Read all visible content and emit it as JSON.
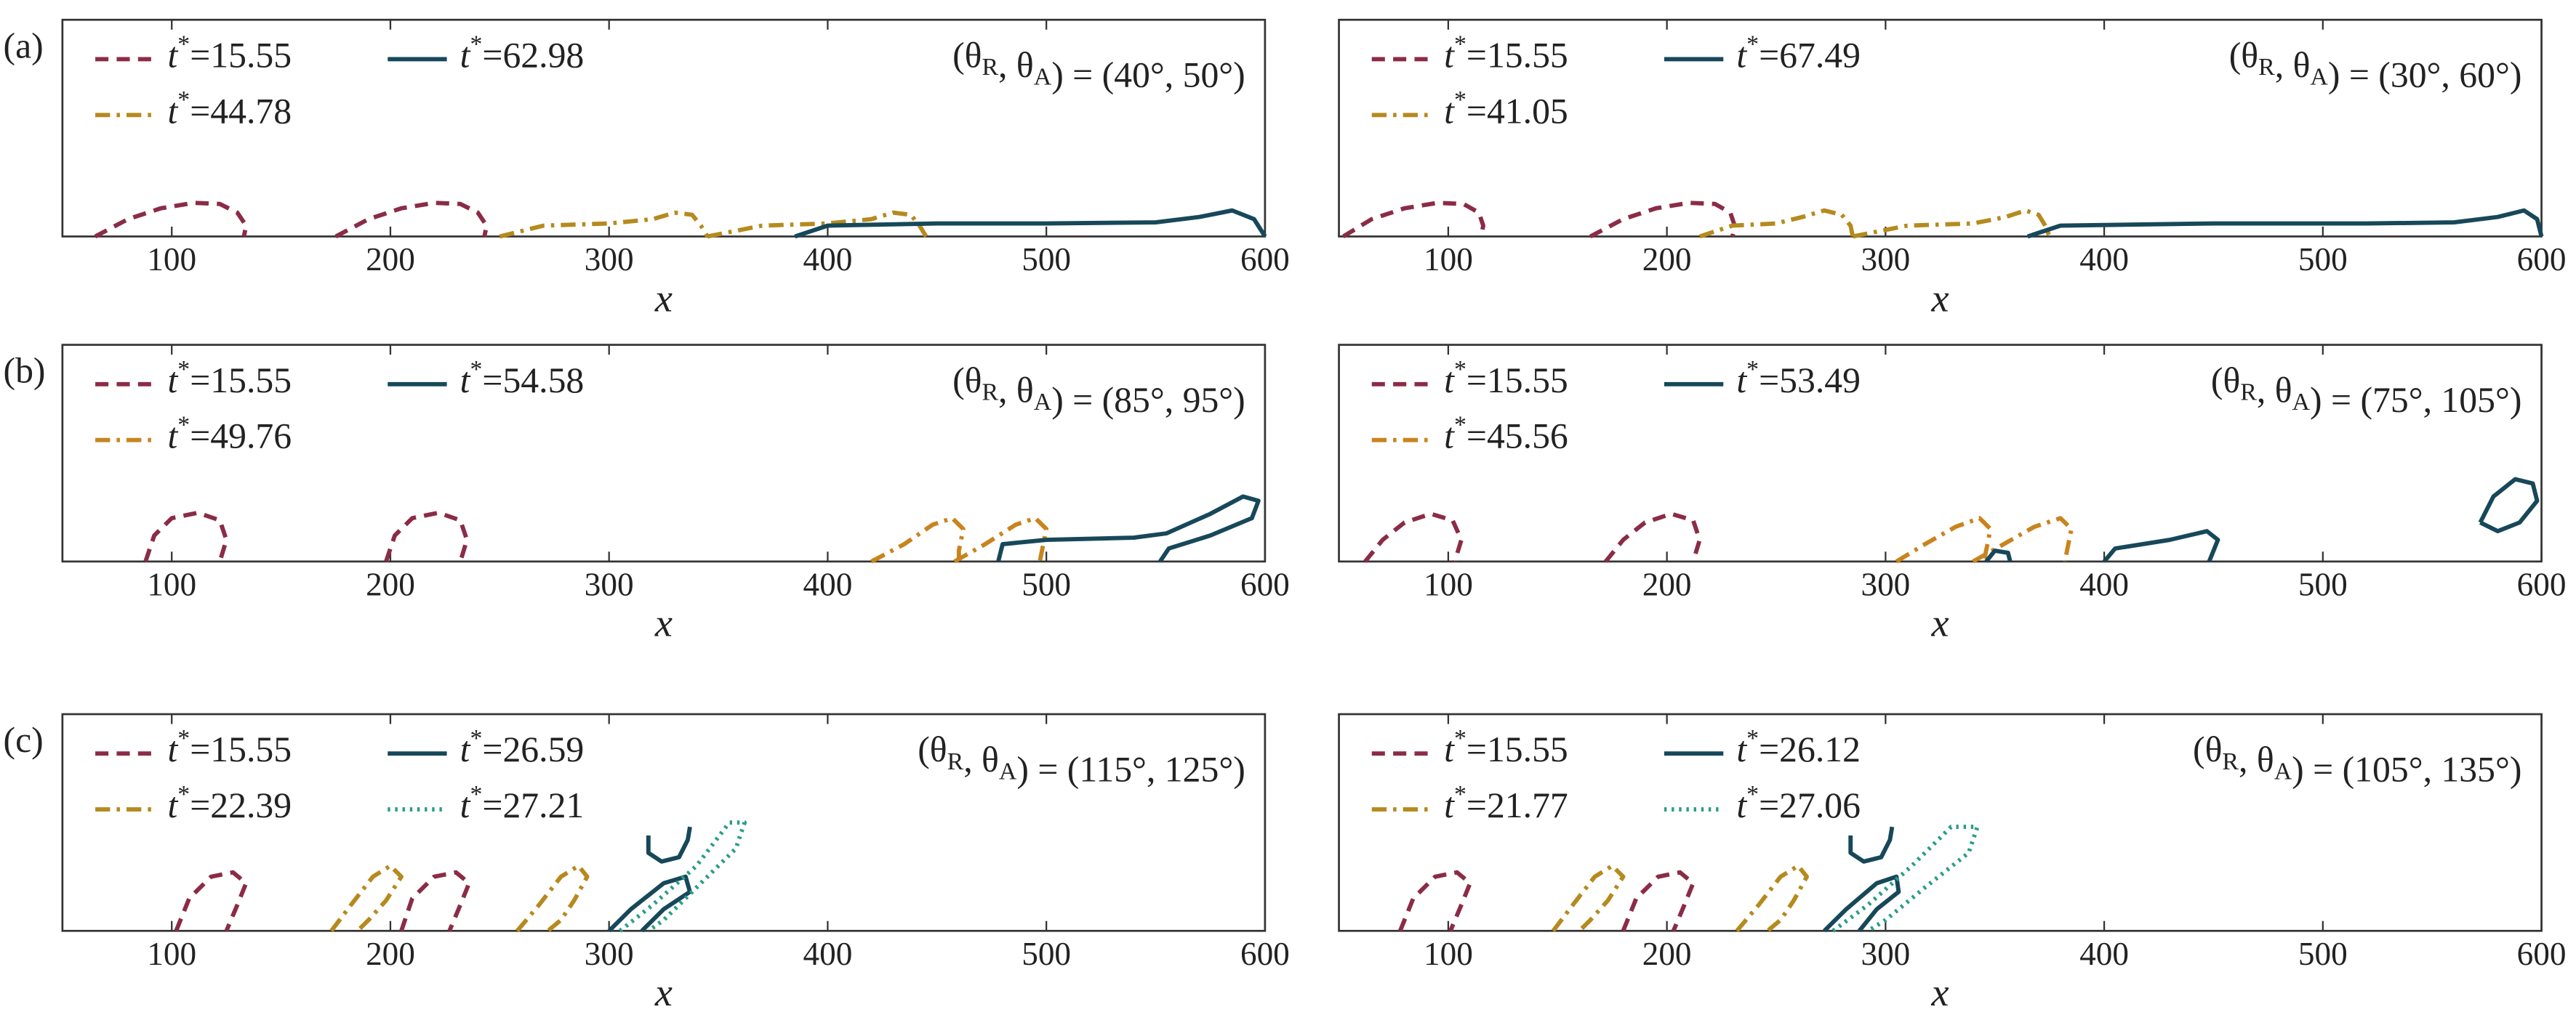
{
  "chart_data": [
    {
      "type": "line",
      "panel_label": "(a)",
      "annotation": "(θR, θA) = (40°, 50°)",
      "xlabel": "x",
      "xlim": [
        50,
        600
      ],
      "ylim": [
        0,
        100
      ],
      "xticks": [
        100,
        200,
        300,
        400,
        500,
        600
      ],
      "series": [
        {
          "name": "t*=15.55",
          "color": "#8b2c46",
          "dash": "dashed",
          "x": [
            65,
            80,
            95,
            110,
            122,
            130,
            134,
            133,
            null,
            175,
            190,
            205,
            220,
            232,
            240,
            244,
            243
          ],
          "values": [
            0,
            8,
            13,
            15.5,
            15,
            11,
            5,
            0,
            null,
            0,
            8,
            13,
            15.5,
            15,
            11,
            5,
            0
          ]
        },
        {
          "name": "t*=44.78",
          "color": "#b58a1e",
          "dash": "dashdot",
          "x": [
            250,
            270,
            300,
            320,
            330,
            338,
            342,
            345,
            null,
            345,
            370,
            400,
            420,
            430,
            438,
            442,
            445
          ],
          "values": [
            0,
            5,
            6,
            8,
            11,
            10,
            5,
            0,
            null,
            0,
            5,
            6,
            8,
            11,
            10,
            5,
            0
          ]
        },
        {
          "name": "t*=62.98",
          "color": "#17485a",
          "dash": "solid",
          "x": [
            385,
            400,
            450,
            500,
            550,
            570,
            585,
            595,
            600
          ],
          "values": [
            0,
            5,
            6,
            6,
            6.5,
            9,
            12,
            8,
            0
          ]
        }
      ]
    },
    {
      "type": "line",
      "annotation": "(θR, θA) = (30°, 60°)",
      "xlabel": "x",
      "xlim": [
        50,
        600
      ],
      "ylim": [
        0,
        100
      ],
      "xticks": [
        100,
        200,
        300,
        400,
        500,
        600
      ],
      "series": [
        {
          "name": "t*=15.55",
          "color": "#8b2c46",
          "dash": "dashed",
          "x": [
            52,
            65,
            80,
            95,
            107,
            114,
            116,
            115,
            null,
            165,
            180,
            195,
            210,
            222,
            229,
            231,
            230
          ],
          "values": [
            0,
            8,
            13,
            15.5,
            15,
            11,
            5,
            0,
            null,
            0,
            8,
            13,
            15.5,
            15,
            11,
            5,
            0
          ]
        },
        {
          "name": "t*=41.05",
          "color": "#b58a1e",
          "dash": "dashdot",
          "x": [
            215,
            230,
            250,
            262,
            272,
            280,
            284,
            285,
            null,
            285,
            310,
            340,
            355,
            364,
            370,
            373,
            375
          ],
          "values": [
            0,
            5,
            6,
            9,
            12,
            10,
            5,
            0,
            null,
            0,
            5,
            6,
            9,
            12,
            10,
            5,
            0
          ]
        },
        {
          "name": "t*=67.49",
          "color": "#17485a",
          "dash": "solid",
          "x": [
            365,
            380,
            450,
            520,
            560,
            580,
            592,
            598,
            600
          ],
          "values": [
            0,
            5,
            6,
            6,
            6.5,
            9,
            12,
            8,
            0
          ]
        }
      ]
    },
    {
      "type": "line",
      "panel_label": "(b)",
      "annotation": "(θR, θA) = (85°, 95°)",
      "xlabel": "x",
      "xlim": [
        50,
        600
      ],
      "ylim": [
        0,
        100
      ],
      "xticks": [
        100,
        200,
        300,
        400,
        500,
        600
      ],
      "series": [
        {
          "name": "t*=15.55",
          "color": "#8b2c46",
          "dash": "dashed",
          "x": [
            88,
            92,
            100,
            112,
            122,
            125,
            122,
            null,
            198,
            202,
            210,
            222,
            232,
            235,
            232
          ],
          "values": [
            0,
            12,
            20,
            22.5,
            19,
            10,
            0,
            null,
            0,
            12,
            20,
            22.5,
            19,
            10,
            0
          ]
        },
        {
          "name": "t*=49.76",
          "color": "#c8841e",
          "dash": "dashdot",
          "x": [
            420,
            435,
            448,
            457,
            462,
            460,
            460,
            null,
            458,
            472,
            486,
            495,
            500,
            498,
            497
          ],
          "values": [
            0,
            8,
            17,
            20,
            15,
            5,
            0,
            null,
            0,
            8,
            17,
            20,
            15,
            5,
            0
          ]
        },
        {
          "name": "t*=54.58",
          "color": "#17485a",
          "dash": "solid",
          "x": [
            478,
            480,
            500,
            540,
            555,
            575,
            590,
            597,
            594,
            575,
            556,
            552
          ],
          "values": [
            0,
            8,
            10,
            11,
            13,
            22,
            30,
            28,
            20,
            12,
            6,
            0
          ]
        }
      ]
    },
    {
      "type": "line",
      "annotation": "(θR, θA) = (75°, 105°)",
      "xlabel": "x",
      "xlim": [
        50,
        600
      ],
      "ylim": [
        0,
        100
      ],
      "xticks": [
        100,
        200,
        300,
        400,
        500,
        600
      ],
      "series": [
        {
          "name": "t*=15.55",
          "color": "#8b2c46",
          "dash": "dashed",
          "x": [
            62,
            70,
            80,
            92,
            102,
            106,
            103,
            null,
            172,
            180,
            190,
            202,
            212,
            215,
            212
          ],
          "values": [
            0,
            10,
            18,
            22,
            19,
            10,
            0,
            null,
            0,
            10,
            18,
            22,
            19,
            10,
            0
          ]
        },
        {
          "name": "t*=45.56",
          "color": "#c8841e",
          "dash": "dashdot",
          "x": [
            305,
            318,
            332,
            343,
            348,
            346,
            345,
            null,
            340,
            354,
            368,
            380,
            385,
            383,
            382
          ],
          "values": [
            0,
            8,
            16,
            20,
            15,
            5,
            0,
            null,
            0,
            8,
            16,
            20,
            15,
            5,
            0
          ]
        },
        {
          "name": "t*=53.49",
          "color": "#17485a",
          "dash": "solid",
          "x": [
            346,
            350,
            356,
            357,
            null,
            400,
            405,
            430,
            447,
            452,
            448,
            null,
            572,
            578,
            588,
            596,
            598,
            590,
            580,
            572
          ],
          "values": [
            0,
            5,
            4,
            0,
            null,
            0,
            6,
            10,
            14,
            10,
            0,
            null,
            18,
            30,
            38,
            36,
            28,
            18,
            14,
            18
          ]
        }
      ]
    },
    {
      "type": "line",
      "panel_label": "(c)",
      "annotation": "(θR, θA) = (115°, 125°)",
      "xlabel": "x",
      "xlim": [
        50,
        600
      ],
      "ylim": [
        0,
        100
      ],
      "xticks": [
        100,
        200,
        300,
        400,
        500,
        600
      ],
      "series": [
        {
          "name": "t*=15.55",
          "color": "#8b2c46",
          "dash": "dashed",
          "x": [
            102,
            108,
            118,
            128,
            134,
            130,
            125,
            null,
            205,
            210,
            220,
            230,
            236,
            232,
            227
          ],
          "values": [
            0,
            15,
            25,
            27,
            22,
            12,
            0,
            null,
            0,
            15,
            25,
            27,
            22,
            12,
            0
          ]
        },
        {
          "name": "t*=22.39",
          "color": "#b58a1e",
          "dash": "dashdot",
          "x": [
            173,
            182,
            192,
            200,
            205,
            198,
            190,
            185,
            null,
            258,
            268,
            278,
            286,
            290,
            284,
            278,
            272
          ],
          "values": [
            0,
            12,
            25,
            30,
            25,
            14,
            5,
            0,
            null,
            0,
            12,
            25,
            30,
            25,
            14,
            5,
            0
          ]
        },
        {
          "name": "t*=26.59",
          "color": "#17485a",
          "dash": "solid",
          "x": [
            300,
            310,
            325,
            335,
            337,
            325,
            315,
            null,
            318,
            318,
            324,
            332,
            336,
            337
          ],
          "values": [
            0,
            10,
            22,
            25,
            18,
            10,
            0,
            null,
            44,
            36,
            32,
            34,
            42,
            48
          ]
        },
        {
          "name": "t*=27.21",
          "color": "#2a9d88",
          "dash": "dotted",
          "x": [
            305,
            320,
            340,
            355,
            362,
            358,
            340,
            325,
            318
          ],
          "values": [
            0,
            12,
            30,
            50,
            50,
            38,
            20,
            5,
            0
          ]
        }
      ]
    },
    {
      "type": "line",
      "annotation": "(θR, θA) = (105°, 135°)",
      "xlabel": "x",
      "xlim": [
        50,
        600
      ],
      "ylim": [
        0,
        100
      ],
      "xticks": [
        100,
        200,
        300,
        400,
        500,
        600
      ],
      "series": [
        {
          "name": "t*=15.55",
          "color": "#8b2c46",
          "dash": "dashed",
          "x": [
            78,
            84,
            94,
            104,
            110,
            106,
            101,
            null,
            180,
            186,
            196,
            206,
            212,
            208,
            203
          ],
          "values": [
            0,
            15,
            25,
            27,
            22,
            12,
            0,
            null,
            0,
            15,
            25,
            27,
            22,
            12,
            0
          ]
        },
        {
          "name": "t*=21.77",
          "color": "#b58a1e",
          "dash": "dashdot",
          "x": [
            148,
            157,
            167,
            175,
            180,
            173,
            165,
            160,
            null,
            232,
            242,
            252,
            260,
            264,
            258,
            252,
            246
          ],
          "values": [
            0,
            12,
            25,
            30,
            25,
            14,
            5,
            0,
            null,
            0,
            12,
            25,
            30,
            25,
            14,
            5,
            0
          ]
        },
        {
          "name": "t*=26.12",
          "color": "#17485a",
          "dash": "solid",
          "x": [
            272,
            282,
            296,
            305,
            306,
            296,
            288,
            null,
            284,
            284,
            290,
            298,
            302,
            303
          ],
          "values": [
            0,
            10,
            22,
            25,
            18,
            10,
            0,
            null,
            44,
            36,
            32,
            34,
            42,
            48
          ]
        },
        {
          "name": "t*=27.06",
          "color": "#2a9d88",
          "dash": "dotted",
          "x": [
            276,
            292,
            312,
            330,
            342,
            338,
            318,
            300,
            292
          ],
          "values": [
            0,
            12,
            30,
            48,
            48,
            36,
            20,
            5,
            0
          ]
        }
      ]
    }
  ]
}
